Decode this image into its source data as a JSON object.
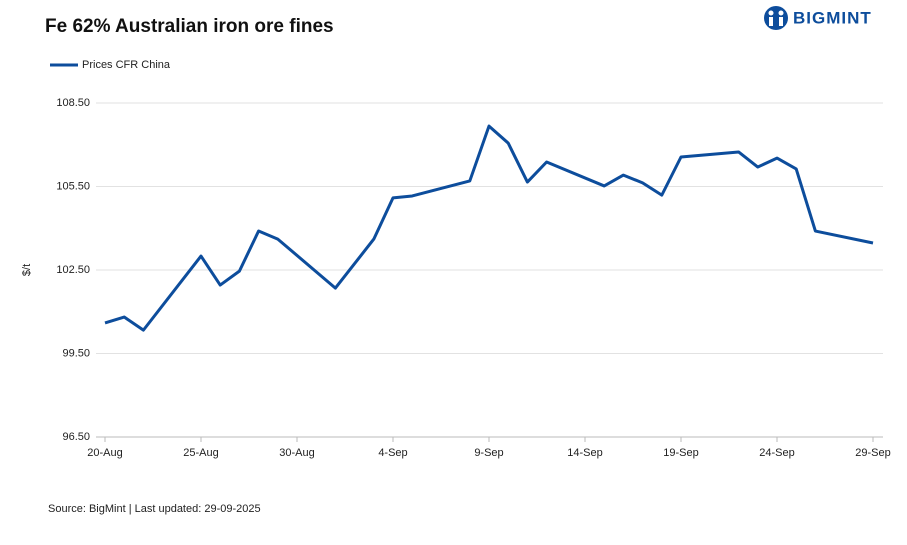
{
  "chart_data": {
    "type": "line",
    "title": "Fe 62% Australian iron ore fines",
    "brand": "BIGMINT",
    "y_label": "$/t",
    "source": "Source: BigMint | Last updated: 29-09-2025",
    "x": [
      "20-Aug",
      "21-Aug",
      "22-Aug",
      "25-Aug",
      "26-Aug",
      "27-Aug",
      "28-Aug",
      "29-Aug",
      "1-Sep",
      "3-Sep",
      "4-Sep",
      "5-Sep",
      "8-Sep",
      "9-Sep",
      "10-Sep",
      "11-Sep",
      "12-Sep",
      "15-Sep",
      "16-Sep",
      "17-Sep",
      "18-Sep",
      "19-Sep",
      "22-Sep",
      "23-Sep",
      "24-Sep",
      "25-Sep",
      "26-Sep",
      "29-Sep"
    ],
    "series": [
      {
        "name": "Prices CFR China",
        "color": "#0d4d9c",
        "values": [
          100.6,
          100.81,
          100.34,
          103.0,
          101.96,
          102.46,
          103.9,
          103.61,
          101.85,
          103.61,
          105.09,
          105.16,
          105.7,
          107.67,
          107.06,
          105.66,
          106.38,
          105.52,
          105.91,
          105.63,
          105.19,
          106.56,
          106.74,
          106.2,
          106.52,
          106.13,
          103.9,
          103.47
        ]
      }
    ],
    "xlim": [
      "20-Aug",
      "29-Sep"
    ],
    "xticks": [
      "20-Aug",
      "25-Aug",
      "30-Aug",
      "4-Sep",
      "9-Sep",
      "14-Sep",
      "19-Sep",
      "24-Sep",
      "29-Sep"
    ],
    "ylim": [
      96.5,
      108.5
    ],
    "yticks": [
      {
        "value": 96.5,
        "label": "96.50"
      },
      {
        "value": 99.5,
        "label": "99.50"
      },
      {
        "value": 102.5,
        "label": "102.50"
      },
      {
        "value": 105.5,
        "label": "105.50"
      },
      {
        "value": 108.5,
        "label": "108.50"
      }
    ],
    "grid": true
  }
}
